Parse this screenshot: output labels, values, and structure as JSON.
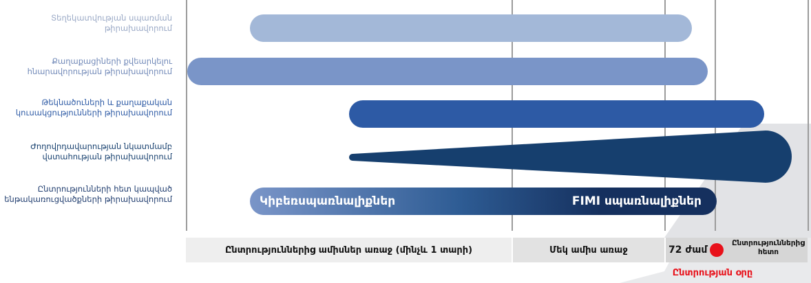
{
  "rows": [
    {
      "label": "Տեղեկատվության սպառման\nթիրախավորում",
      "color": "#a3b8d8"
    },
    {
      "label": "Քաղաքացիների քվեարկելու\nհնարավորության թիրախավորում",
      "color": "#7a95c8"
    },
    {
      "label": "Թեկնածուների և քաղաքական\nկուսակցությունների թիրախավորում",
      "color": "#2d5aa5"
    },
    {
      "label": "Ժողովրդավարության նկատմամբ\nվստահության թիրախավորում",
      "color": "#163f6e"
    },
    {
      "label": "Ընտրությունների հետ կապված\nենթակառուցվածքների թիրախավորում",
      "color": "#1f3c6e"
    }
  ],
  "threat_bar": {
    "left_label": "Կիբեռսպառնալիքներ",
    "right_label": "FIMI սպառնալիքներ",
    "color_start": "#7a95c8",
    "color_end": "#15305e"
  },
  "timeline": {
    "months_before": "Ընտրություններից ամիսներ առաջ (մինչև 1 տարի)",
    "one_month": "Մեկ ամիս առաջ",
    "hours": "72 ժամ",
    "after": "Ընտրություններից\nհետո",
    "election_day": "Ընտրության օրը",
    "election_day_color": "#e8111a"
  }
}
